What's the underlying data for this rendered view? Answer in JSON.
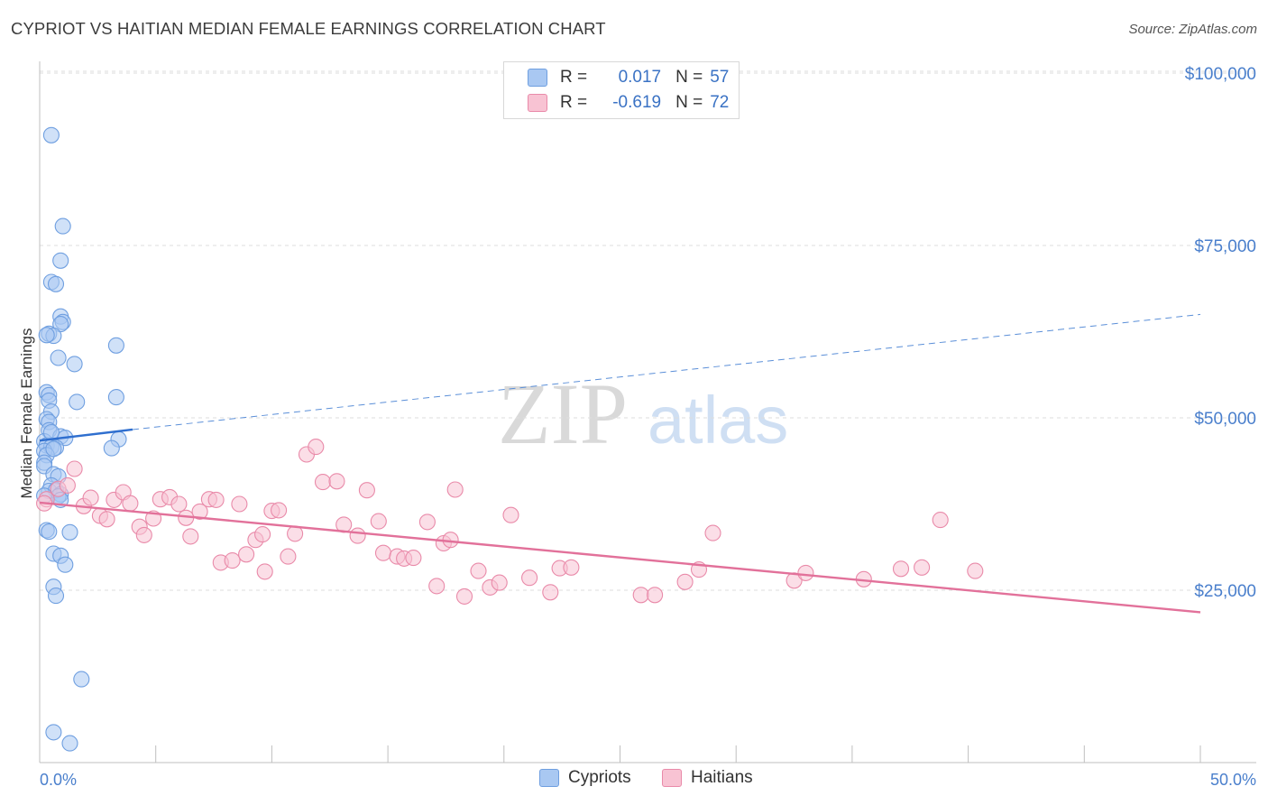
{
  "header": {
    "title": "CYPRIOT VS HAITIAN MEDIAN FEMALE EARNINGS CORRELATION CHART",
    "source": "Source: ZipAtlas.com"
  },
  "watermark": {
    "zip": "ZIP",
    "atlas": "atlas"
  },
  "legend": {
    "rows": [
      {
        "r_label": "R =",
        "r_value": "0.017",
        "n_label": "N =",
        "n_value": "57",
        "swatch": "#a9c8f2",
        "swatch_border": "#6f9fe0"
      },
      {
        "r_label": "R =",
        "r_value": "-0.619",
        "n_label": "N =",
        "n_value": "72",
        "swatch": "#f8c3d3",
        "swatch_border": "#e98aa9"
      }
    ]
  },
  "bottom_legend": {
    "items": [
      "Cypriots",
      "Haitians"
    ]
  },
  "chart_data": {
    "type": "scatter",
    "title": "CYPRIOT VS HAITIAN MEDIAN FEMALE EARNINGS CORRELATION CHART",
    "xlabel": "",
    "ylabel": "Median Female Earnings",
    "xlim": [
      0,
      50
    ],
    "ylim": [
      0,
      105000
    ],
    "x_tick_labels": [
      "0.0%",
      "50.0%"
    ],
    "y_ticks": [
      25000,
      50000,
      75000,
      100000
    ],
    "y_tick_labels": [
      "$25,000",
      "$50,000",
      "$75,000",
      "$100,000"
    ],
    "grid": "horizontal dashed",
    "legend_position": "top-center",
    "series": [
      {
        "name": "Cypriots",
        "color": "#6f9fe0",
        "fill": "#a9c8f2",
        "r": 0.017,
        "n": 57,
        "trend": {
          "x": [
            0,
            4,
            50
          ],
          "y": [
            46700,
            48300,
            65000
          ]
        },
        "points": [
          [
            0.5,
            91000
          ],
          [
            1.0,
            77800
          ],
          [
            0.9,
            72800
          ],
          [
            0.5,
            69700
          ],
          [
            0.7,
            69400
          ],
          [
            0.9,
            64700
          ],
          [
            1.0,
            63900
          ],
          [
            0.9,
            63600
          ],
          [
            0.4,
            62200
          ],
          [
            0.6,
            61900
          ],
          [
            3.3,
            60500
          ],
          [
            0.8,
            58700
          ],
          [
            1.5,
            57800
          ],
          [
            0.3,
            53700
          ],
          [
            0.4,
            53300
          ],
          [
            3.3,
            53000
          ],
          [
            0.4,
            52500
          ],
          [
            1.6,
            52300
          ],
          [
            0.5,
            50900
          ],
          [
            0.3,
            49800
          ],
          [
            0.4,
            49400
          ],
          [
            0.4,
            48200
          ],
          [
            0.9,
            47300
          ],
          [
            1.1,
            47100
          ],
          [
            0.2,
            46600
          ],
          [
            3.4,
            46900
          ],
          [
            0.3,
            46000
          ],
          [
            0.5,
            45800
          ],
          [
            0.7,
            45700
          ],
          [
            3.1,
            45600
          ],
          [
            0.2,
            45200
          ],
          [
            0.3,
            44600
          ],
          [
            0.2,
            43500
          ],
          [
            0.2,
            43000
          ],
          [
            0.6,
            41800
          ],
          [
            0.8,
            41500
          ],
          [
            0.5,
            40200
          ],
          [
            0.4,
            39400
          ],
          [
            0.7,
            39500
          ],
          [
            0.9,
            38900
          ],
          [
            0.8,
            38600
          ],
          [
            0.9,
            38100
          ],
          [
            0.3,
            33700
          ],
          [
            0.4,
            33500
          ],
          [
            1.3,
            33400
          ],
          [
            0.6,
            30300
          ],
          [
            0.9,
            30000
          ],
          [
            1.1,
            28700
          ],
          [
            0.6,
            25500
          ],
          [
            0.7,
            24200
          ],
          [
            1.8,
            12100
          ],
          [
            0.6,
            4400
          ],
          [
            1.3,
            2800
          ],
          [
            0.3,
            62000
          ],
          [
            0.5,
            47900
          ],
          [
            0.2,
            38700
          ],
          [
            0.6,
            45500
          ]
        ]
      },
      {
        "name": "Haitians",
        "color": "#e98aa9",
        "fill": "#f8c3d3",
        "r": -0.619,
        "n": 72,
        "trend": {
          "x": [
            0,
            50
          ],
          "y": [
            37700,
            21800
          ]
        },
        "points": [
          [
            0.3,
            38200
          ],
          [
            0.8,
            39700
          ],
          [
            1.2,
            40200
          ],
          [
            1.5,
            42600
          ],
          [
            1.9,
            37200
          ],
          [
            2.2,
            38400
          ],
          [
            2.6,
            35800
          ],
          [
            2.9,
            35300
          ],
          [
            3.2,
            38100
          ],
          [
            3.6,
            39200
          ],
          [
            3.9,
            37600
          ],
          [
            4.3,
            34200
          ],
          [
            4.5,
            33000
          ],
          [
            4.9,
            35400
          ],
          [
            5.2,
            38200
          ],
          [
            5.6,
            38500
          ],
          [
            6.0,
            37500
          ],
          [
            6.3,
            35500
          ],
          [
            6.5,
            32800
          ],
          [
            6.9,
            36400
          ],
          [
            7.3,
            38200
          ],
          [
            7.6,
            38100
          ],
          [
            7.8,
            29000
          ],
          [
            8.3,
            29300
          ],
          [
            8.6,
            37500
          ],
          [
            8.9,
            30200
          ],
          [
            9.3,
            32300
          ],
          [
            9.6,
            33100
          ],
          [
            9.7,
            27700
          ],
          [
            10.0,
            36500
          ],
          [
            10.3,
            36600
          ],
          [
            10.7,
            29900
          ],
          [
            11.0,
            33200
          ],
          [
            11.5,
            44700
          ],
          [
            11.9,
            45800
          ],
          [
            12.2,
            40700
          ],
          [
            12.8,
            40800
          ],
          [
            13.1,
            34500
          ],
          [
            13.7,
            32900
          ],
          [
            14.1,
            39500
          ],
          [
            14.6,
            35000
          ],
          [
            14.8,
            30400
          ],
          [
            15.4,
            29900
          ],
          [
            15.7,
            29600
          ],
          [
            16.1,
            29700
          ],
          [
            16.7,
            34900
          ],
          [
            17.1,
            25600
          ],
          [
            17.4,
            31800
          ],
          [
            17.7,
            32300
          ],
          [
            17.9,
            39600
          ],
          [
            18.3,
            24100
          ],
          [
            18.9,
            27800
          ],
          [
            19.4,
            25400
          ],
          [
            19.8,
            26100
          ],
          [
            20.3,
            35900
          ],
          [
            21.1,
            26800
          ],
          [
            22.0,
            24700
          ],
          [
            22.4,
            28200
          ],
          [
            22.9,
            28300
          ],
          [
            25.9,
            24300
          ],
          [
            26.5,
            24300
          ],
          [
            27.8,
            26200
          ],
          [
            28.4,
            28000
          ],
          [
            29.0,
            33300
          ],
          [
            32.5,
            26400
          ],
          [
            33.0,
            27500
          ],
          [
            35.5,
            26600
          ],
          [
            37.1,
            28100
          ],
          [
            38.0,
            28300
          ],
          [
            38.8,
            35200
          ],
          [
            40.3,
            27800
          ],
          [
            0.2,
            37600
          ]
        ]
      }
    ]
  }
}
